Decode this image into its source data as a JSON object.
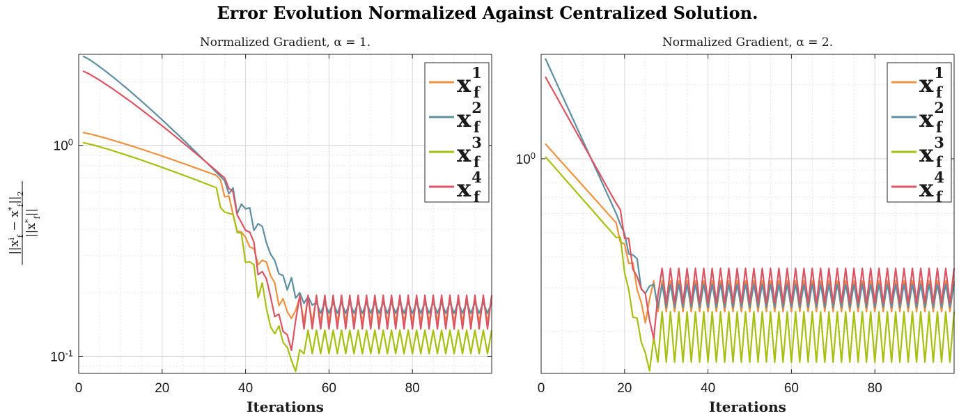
{
  "figure": {
    "suptitle": "Error Evolution Normalized Against Centralized Solution.",
    "ylabel": "||x_f^i − x_f^*||_2 / ||x_f^*||"
  },
  "colors": {
    "x1": "#f0913f",
    "x2": "#5e8ea0",
    "x3": "#a8bf12",
    "x4": "#d95564",
    "grid": "#dddddd",
    "axis": "#262626"
  },
  "chart_data": [
    {
      "type": "line",
      "title": "Normalized Gradient, α = 1.",
      "xlabel": "Iterations",
      "ylabel": "||x_f^i − x_f^*||_2 / ||x_f^*||",
      "yscale": "log",
      "xlim": [
        0,
        99
      ],
      "ylim": [
        0.083,
        2.7
      ],
      "xticks": [
        0,
        20,
        40,
        60,
        80
      ],
      "yticks": [
        {
          "value": 0.1,
          "label": "10",
          "exp": "-1"
        },
        {
          "value": 1,
          "label": "10",
          "exp": "0"
        }
      ],
      "grid": true,
      "legend_position": "top-right",
      "series": [
        {
          "name": "x_f^1",
          "color_key": "x1",
          "start": 1.15,
          "mid": 0.72,
          "mid_x": 33,
          "floor": 0.14,
          "floor_x": 51,
          "osc_lo": 0.145,
          "osc_hi": 0.19
        },
        {
          "name": "x_f^2",
          "color_key": "x2",
          "start": 2.65,
          "mid": 0.68,
          "mid_x": 35,
          "floor": 0.17,
          "floor_x": 55,
          "osc_lo": 0.16,
          "osc_hi": 0.18
        },
        {
          "name": "x_f^3",
          "color_key": "x3",
          "start": 1.03,
          "mid": 0.63,
          "mid_x": 33,
          "floor": 0.082,
          "floor_x": 52,
          "osc_lo": 0.103,
          "osc_hi": 0.133
        },
        {
          "name": "x_f^4",
          "color_key": "x4",
          "start": 2.25,
          "mid": 0.7,
          "mid_x": 35,
          "floor": 0.1,
          "floor_x": 51,
          "osc_lo": 0.135,
          "osc_hi": 0.195
        }
      ]
    },
    {
      "type": "line",
      "title": "Normalized Gradient, α = 2.",
      "xlabel": "Iterations",
      "ylabel": "",
      "yscale": "log",
      "xlim": [
        0,
        99
      ],
      "ylim": [
        0.135,
        2.65
      ],
      "xticks": [
        0,
        20,
        40,
        60,
        80
      ],
      "yticks": [
        {
          "value": 1,
          "label": "10",
          "exp": "0"
        }
      ],
      "grid": true,
      "legend_position": "top-right",
      "series": [
        {
          "name": "x_f^1",
          "color_key": "x1",
          "start": 1.15,
          "mid": 0.55,
          "mid_x": 18,
          "floor": 0.22,
          "floor_x": 25,
          "osc_lo": 0.24,
          "osc_hi": 0.32
        },
        {
          "name": "x_f^2",
          "color_key": "x2",
          "start": 2.55,
          "mid": 0.6,
          "mid_x": 18,
          "floor": 0.3,
          "floor_x": 25,
          "osc_lo": 0.25,
          "osc_hi": 0.31
        },
        {
          "name": "x_f^3",
          "color_key": "x3",
          "start": 1.02,
          "mid": 0.48,
          "mid_x": 18,
          "floor": 0.137,
          "floor_x": 26,
          "osc_lo": 0.15,
          "osc_hi": 0.24
        },
        {
          "name": "x_f^4",
          "color_key": "x4",
          "start": 2.15,
          "mid": 0.66,
          "mid_x": 18,
          "floor": 0.2,
          "floor_x": 27,
          "osc_lo": 0.26,
          "osc_hi": 0.36
        }
      ]
    }
  ]
}
